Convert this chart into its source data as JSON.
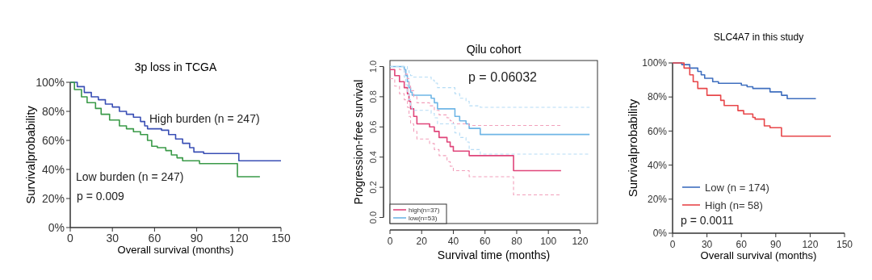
{
  "chart_data": [
    {
      "type": "step",
      "title": "3p loss in TCGA",
      "xlabel": "Overall survival (months)",
      "ylabel": "Survivalprobability",
      "xlim": [
        0,
        150
      ],
      "xticks": [
        0,
        30,
        60,
        90,
        120,
        150
      ],
      "ylim": [
        0,
        100
      ],
      "yticks": [
        {
          "value": 0,
          "label": "0%"
        },
        {
          "value": 20,
          "label": "20%"
        },
        {
          "value": 40,
          "label": "40%"
        },
        {
          "value": 60,
          "label": "60%"
        },
        {
          "value": 80,
          "label": "80%"
        },
        {
          "value": 100,
          "label": "100%"
        }
      ],
      "legend": false,
      "annotations": [
        "p = 0.009"
      ],
      "series": [
        {
          "name": "High burden (n = 247)",
          "color": "#3a4fb5",
          "x": [
            0,
            5,
            10,
            15,
            20,
            25,
            30,
            35,
            40,
            45,
            50,
            53,
            55,
            65,
            70,
            75,
            80,
            85,
            88,
            95,
            120,
            150
          ],
          "values": [
            100,
            97,
            93,
            90,
            88,
            85,
            83,
            80,
            78,
            76,
            73,
            70,
            68,
            67,
            64,
            61,
            58,
            55,
            52,
            51,
            46,
            46
          ]
        },
        {
          "name": "Low burden (n = 247)",
          "color": "#3a9a48",
          "x": [
            0,
            3,
            8,
            12,
            18,
            22,
            28,
            35,
            40,
            45,
            50,
            55,
            58,
            62,
            68,
            72,
            76,
            80,
            92,
            119,
            135
          ],
          "values": [
            100,
            95,
            90,
            86,
            82,
            78,
            74,
            70,
            68,
            66,
            64,
            60,
            56,
            55,
            53,
            50,
            48,
            46,
            44,
            35,
            35
          ]
        }
      ]
    },
    {
      "type": "step",
      "title": "Qilu cohort",
      "xlabel": "Survival time (months)",
      "ylabel": "Progression-free survival",
      "xlim": [
        0,
        131
      ],
      "xticks": [
        0,
        20,
        40,
        60,
        80,
        100,
        120
      ],
      "ylim": [
        -0.04,
        1.04
      ],
      "yticks": [
        {
          "value": 0,
          "label": "0.0"
        },
        0.2,
        0.4,
        0.6,
        0.8,
        {
          "value": 1,
          "label": "1.0"
        }
      ],
      "legend": "bottom left",
      "annotations": [
        "p = 0.06032"
      ],
      "series": [
        {
          "name": "high(n=37)",
          "color": "#e0457a",
          "x": [
            0,
            3,
            6,
            9,
            11,
            12,
            13,
            15,
            17,
            25,
            28,
            31,
            36,
            38,
            40,
            50,
            78,
            108
          ],
          "values": [
            0.98,
            0.94,
            0.9,
            0.86,
            0.82,
            0.77,
            0.72,
            0.67,
            0.62,
            0.6,
            0.57,
            0.53,
            0.5,
            0.47,
            0.44,
            0.41,
            0.31,
            0.31
          ]
        },
        {
          "name": "low(n=53)",
          "color": "#6fb6e6",
          "x": [
            0,
            9,
            10,
            11,
            12,
            13,
            14,
            26,
            28,
            30,
            41,
            44,
            48,
            50,
            57,
            126
          ],
          "values": [
            1.0,
            0.98,
            0.94,
            0.9,
            0.86,
            0.83,
            0.81,
            0.79,
            0.76,
            0.72,
            0.67,
            0.64,
            0.62,
            0.59,
            0.55,
            0.55
          ]
        },
        {
          "color": "#f2a0bb",
          "line_style": "dashed",
          "x": [
            0,
            3,
            6,
            9,
            11,
            12,
            13,
            15,
            17,
            25,
            28,
            31,
            36,
            38,
            40,
            50,
            78,
            108
          ],
          "values": [
            0.92,
            0.87,
            0.82,
            0.78,
            0.73,
            0.67,
            0.62,
            0.57,
            0.52,
            0.49,
            0.45,
            0.41,
            0.37,
            0.34,
            0.31,
            0.27,
            0.15,
            0.15
          ]
        },
        {
          "color": "#f2a0bb",
          "line_style": "dashed",
          "x": [
            0,
            3,
            6,
            9,
            11,
            12,
            13,
            15,
            17,
            25,
            28,
            31,
            36,
            38,
            40,
            50,
            78,
            108
          ],
          "values": [
            1.0,
            1.0,
            0.98,
            0.95,
            0.92,
            0.88,
            0.84,
            0.8,
            0.76,
            0.74,
            0.71,
            0.68,
            0.66,
            0.64,
            0.62,
            0.61,
            0.61,
            0.61
          ]
        },
        {
          "color": "#b5dcf5",
          "line_style": "dashed",
          "x": [
            0,
            9,
            10,
            11,
            12,
            13,
            14,
            26,
            28,
            30,
            41,
            44,
            48,
            50,
            57,
            126
          ],
          "values": [
            1.0,
            0.93,
            0.88,
            0.83,
            0.78,
            0.74,
            0.71,
            0.69,
            0.66,
            0.62,
            0.56,
            0.53,
            0.5,
            0.45,
            0.42,
            0.42
          ]
        },
        {
          "color": "#b5dcf5",
          "line_style": "dashed",
          "x": [
            0,
            9,
            10,
            11,
            12,
            13,
            14,
            26,
            28,
            30,
            41,
            44,
            48,
            50,
            57,
            126
          ],
          "values": [
            1.0,
            1.0,
            1.0,
            0.98,
            0.96,
            0.94,
            0.93,
            0.91,
            0.89,
            0.86,
            0.82,
            0.79,
            0.77,
            0.74,
            0.73,
            0.73
          ]
        }
      ]
    },
    {
      "type": "step",
      "title": "SLC4A7 in this study",
      "xlabel": "Overall survival (months)",
      "ylabel": "Survivalprobability",
      "xlim": [
        0,
        150
      ],
      "xticks": [
        0,
        30,
        60,
        90,
        120,
        150
      ],
      "ylim": [
        0,
        100
      ],
      "yticks": [
        {
          "value": 0,
          "label": "0%"
        },
        {
          "value": 20,
          "label": "20%"
        },
        {
          "value": 40,
          "label": "40%"
        },
        {
          "value": 60,
          "label": "60%"
        },
        {
          "value": 80,
          "label": "80%"
        },
        {
          "value": 100,
          "label": "100%"
        }
      ],
      "legend": "bottom left",
      "annotations": [
        "p = 0.0011"
      ],
      "series": [
        {
          "name": "Low (n = 174)",
          "color": "#3f6fbf",
          "x": [
            0,
            8,
            15,
            22,
            25,
            28,
            35,
            40,
            60,
            65,
            70,
            85,
            95,
            100,
            125
          ],
          "values": [
            100,
            99,
            97,
            95,
            93,
            91,
            89,
            88,
            87,
            86,
            85,
            83,
            81,
            79,
            79
          ]
        },
        {
          "name": "High (n= 58)",
          "color": "#e8474a",
          "x": [
            0,
            10,
            15,
            18,
            22,
            30,
            42,
            45,
            57,
            62,
            70,
            72,
            80,
            85,
            95,
            138
          ],
          "values": [
            100,
            97,
            93,
            89,
            85,
            81,
            78,
            75,
            72,
            70,
            68,
            67,
            63,
            62,
            57,
            57
          ]
        }
      ]
    }
  ]
}
